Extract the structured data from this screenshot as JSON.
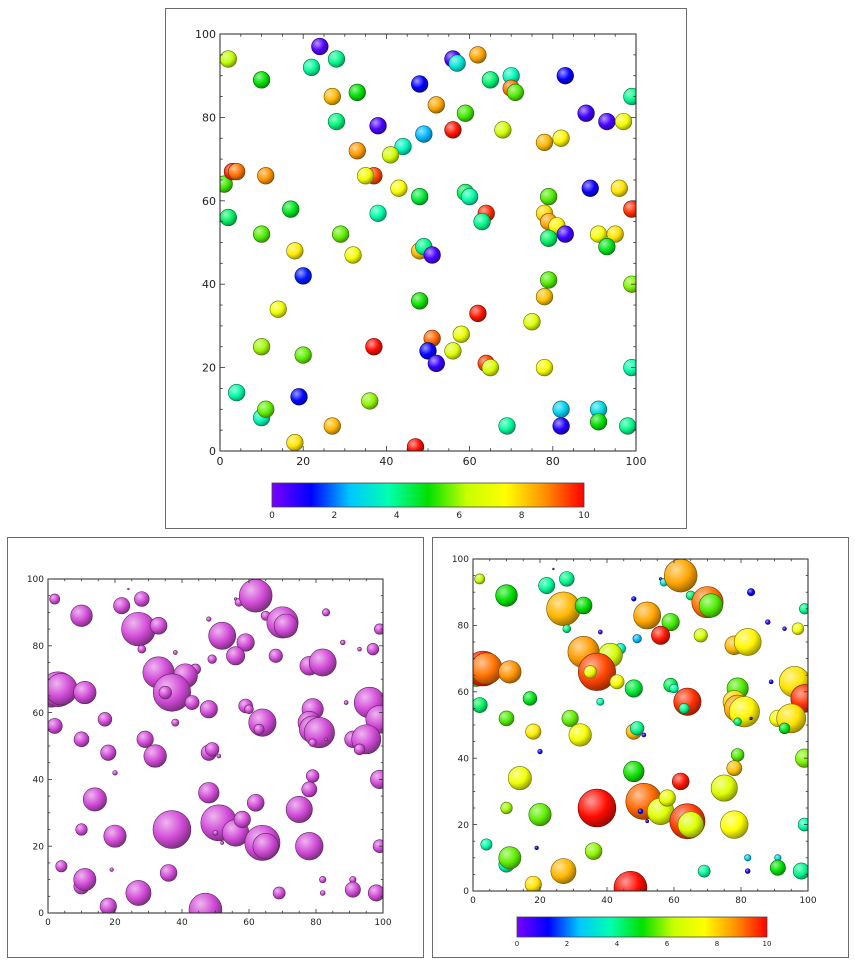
{
  "colorbar": {
    "colors": [
      "#7a00ff",
      "#0000ff",
      "#00c8ff",
      "#00ffb0",
      "#00e000",
      "#c8ff00",
      "#ffff00",
      "#ff9000",
      "#ff0000"
    ],
    "ticks": [
      "0",
      "2",
      "4",
      "6",
      "8",
      "10"
    ],
    "range": [
      0,
      10
    ]
  },
  "chart_data": [
    {
      "panel": "top",
      "type": "scatter",
      "title": "",
      "xlabel": "",
      "ylabel": "",
      "xlim": [
        0,
        100
      ],
      "ylim": [
        0,
        100
      ],
      "xticks": [
        "0",
        "20",
        "40",
        "60",
        "80",
        "100"
      ],
      "yticks": [
        "0",
        "20",
        "40",
        "60",
        "80",
        "100"
      ],
      "grid": false,
      "marker_size_encodes": "uniform",
      "marker_color_encodes": "value",
      "colorbar": true,
      "points": [
        {
          "x": 2,
          "y": 94,
          "v": 6.2
        },
        {
          "x": 10,
          "y": 89,
          "v": 5.0
        },
        {
          "x": 24,
          "y": 97,
          "v": 0.4
        },
        {
          "x": 22,
          "y": 92,
          "v": 3.9
        },
        {
          "x": 28,
          "y": 94,
          "v": 4.0
        },
        {
          "x": 27,
          "y": 85,
          "v": 8.3
        },
        {
          "x": 33,
          "y": 86,
          "v": 5.0
        },
        {
          "x": 28,
          "y": 79,
          "v": 4.1
        },
        {
          "x": 38,
          "y": 78,
          "v": 0.5
        },
        {
          "x": 48,
          "y": 88,
          "v": 1.2
        },
        {
          "x": 56,
          "y": 94,
          "v": 0.6
        },
        {
          "x": 57,
          "y": 93,
          "v": 3.2
        },
        {
          "x": 62,
          "y": 95,
          "v": 8.5
        },
        {
          "x": 65,
          "y": 89,
          "v": 4.2
        },
        {
          "x": 70,
          "y": 90,
          "v": 3.6
        },
        {
          "x": 70,
          "y": 87,
          "v": 9.0
        },
        {
          "x": 71,
          "y": 86,
          "v": 5.5
        },
        {
          "x": 83,
          "y": 90,
          "v": 1.2
        },
        {
          "x": 88,
          "y": 81,
          "v": 0.6
        },
        {
          "x": 93,
          "y": 79,
          "v": 0.5
        },
        {
          "x": 97,
          "y": 79,
          "v": 7.2
        },
        {
          "x": 99,
          "y": 85,
          "v": 4.0
        },
        {
          "x": 52,
          "y": 83,
          "v": 8.5
        },
        {
          "x": 59,
          "y": 81,
          "v": 5.4
        },
        {
          "x": 56,
          "y": 77,
          "v": 9.8
        },
        {
          "x": 49,
          "y": 76,
          "v": 2.4
        },
        {
          "x": 44,
          "y": 73,
          "v": 3.5
        },
        {
          "x": 41,
          "y": 71,
          "v": 6.5
        },
        {
          "x": 33,
          "y": 72,
          "v": 8.6
        },
        {
          "x": 37,
          "y": 66,
          "v": 9.4
        },
        {
          "x": 35,
          "y": 66,
          "v": 7.2
        },
        {
          "x": 43,
          "y": 63,
          "v": 7.4
        },
        {
          "x": 48,
          "y": 61,
          "v": 4.6
        },
        {
          "x": 59,
          "y": 62,
          "v": 4.4
        },
        {
          "x": 60,
          "y": 61,
          "v": 3.8
        },
        {
          "x": 68,
          "y": 77,
          "v": 6.5
        },
        {
          "x": 78,
          "y": 74,
          "v": 8.3
        },
        {
          "x": 82,
          "y": 75,
          "v": 7.6
        },
        {
          "x": 89,
          "y": 63,
          "v": 1.1
        },
        {
          "x": 96,
          "y": 63,
          "v": 7.8
        },
        {
          "x": 99,
          "y": 58,
          "v": 9.6
        },
        {
          "x": 79,
          "y": 61,
          "v": 5.5
        },
        {
          "x": 78,
          "y": 57,
          "v": 7.9
        },
        {
          "x": 79,
          "y": 55,
          "v": 8.5
        },
        {
          "x": 81,
          "y": 54,
          "v": 7.6
        },
        {
          "x": 83,
          "y": 52,
          "v": 0.6
        },
        {
          "x": 79,
          "y": 51,
          "v": 4.3
        },
        {
          "x": 91,
          "y": 52,
          "v": 7.3
        },
        {
          "x": 95,
          "y": 52,
          "v": 7.8
        },
        {
          "x": 93,
          "y": 49,
          "v": 4.8
        },
        {
          "x": 99,
          "y": 40,
          "v": 5.8
        },
        {
          "x": 79,
          "y": 41,
          "v": 5.5
        },
        {
          "x": 78,
          "y": 37,
          "v": 8.2
        },
        {
          "x": 75,
          "y": 31,
          "v": 6.8
        },
        {
          "x": 64,
          "y": 57,
          "v": 9.6
        },
        {
          "x": 63,
          "y": 55,
          "v": 4.0
        },
        {
          "x": 1,
          "y": 64,
          "v": 5.4
        },
        {
          "x": 3,
          "y": 67,
          "v": 9.7
        },
        {
          "x": 4,
          "y": 67,
          "v": 9.0
        },
        {
          "x": 11,
          "y": 66,
          "v": 8.7
        },
        {
          "x": 2,
          "y": 56,
          "v": 4.3
        },
        {
          "x": 10,
          "y": 52,
          "v": 5.5
        },
        {
          "x": 17,
          "y": 58,
          "v": 4.8
        },
        {
          "x": 18,
          "y": 48,
          "v": 7.7
        },
        {
          "x": 20,
          "y": 42,
          "v": 1.4
        },
        {
          "x": 29,
          "y": 52,
          "v": 5.6
        },
        {
          "x": 32,
          "y": 47,
          "v": 7.3
        },
        {
          "x": 38,
          "y": 57,
          "v": 3.8
        },
        {
          "x": 48,
          "y": 48,
          "v": 8.3
        },
        {
          "x": 49,
          "y": 49,
          "v": 4.0
        },
        {
          "x": 51,
          "y": 47,
          "v": 0.5
        },
        {
          "x": 48,
          "y": 36,
          "v": 5.1
        },
        {
          "x": 14,
          "y": 34,
          "v": 7.2
        },
        {
          "x": 10,
          "y": 25,
          "v": 6.0
        },
        {
          "x": 20,
          "y": 23,
          "v": 5.6
        },
        {
          "x": 37,
          "y": 25,
          "v": 9.9
        },
        {
          "x": 51,
          "y": 27,
          "v": 9.1
        },
        {
          "x": 50,
          "y": 24,
          "v": 1.2
        },
        {
          "x": 52,
          "y": 21,
          "v": 0.7
        },
        {
          "x": 56,
          "y": 24,
          "v": 6.8
        },
        {
          "x": 58,
          "y": 28,
          "v": 7.0
        },
        {
          "x": 62,
          "y": 33,
          "v": 9.8
        },
        {
          "x": 64,
          "y": 21,
          "v": 9.5
        },
        {
          "x": 65,
          "y": 20,
          "v": 6.7
        },
        {
          "x": 78,
          "y": 20,
          "v": 7.5
        },
        {
          "x": 4,
          "y": 14,
          "v": 3.8
        },
        {
          "x": 10,
          "y": 8,
          "v": 3.6
        },
        {
          "x": 11,
          "y": 10,
          "v": 5.6
        },
        {
          "x": 19,
          "y": 13,
          "v": 1.3
        },
        {
          "x": 18,
          "y": 2,
          "v": 7.8
        },
        {
          "x": 27,
          "y": 6,
          "v": 8.3
        },
        {
          "x": 36,
          "y": 12,
          "v": 5.9
        },
        {
          "x": 47,
          "y": 1,
          "v": 9.9
        },
        {
          "x": 69,
          "y": 6,
          "v": 3.9
        },
        {
          "x": 82,
          "y": 10,
          "v": 2.7
        },
        {
          "x": 82,
          "y": 6,
          "v": 0.9
        },
        {
          "x": 91,
          "y": 10,
          "v": 2.9
        },
        {
          "x": 91,
          "y": 7,
          "v": 5.0
        },
        {
          "x": 98,
          "y": 6,
          "v": 4.0
        },
        {
          "x": 99,
          "y": 20,
          "v": 3.8
        }
      ]
    },
    {
      "panel": "bottom-left",
      "type": "scatter",
      "title": "",
      "xlabel": "",
      "ylabel": "",
      "xlim": [
        0,
        100
      ],
      "ylim": [
        0,
        100
      ],
      "xticks": [
        "0",
        "20",
        "40",
        "60",
        "80",
        "100"
      ],
      "yticks": [
        "0",
        "20",
        "40",
        "60",
        "80",
        "100"
      ],
      "grid": false,
      "marker_size_encodes": "value",
      "marker_color_encodes": "uniform",
      "marker_color": "#d24cd8",
      "colorbar": false
    },
    {
      "panel": "bottom-right",
      "type": "scatter",
      "title": "",
      "xlabel": "",
      "ylabel": "",
      "xlim": [
        0,
        100
      ],
      "ylim": [
        0,
        100
      ],
      "xticks": [
        "0",
        "20",
        "40",
        "60",
        "80",
        "100"
      ],
      "yticks": [
        "0",
        "20",
        "40",
        "60",
        "80",
        "100"
      ],
      "grid": false,
      "marker_size_encodes": "value",
      "marker_color_encodes": "value",
      "colorbar": true
    }
  ]
}
